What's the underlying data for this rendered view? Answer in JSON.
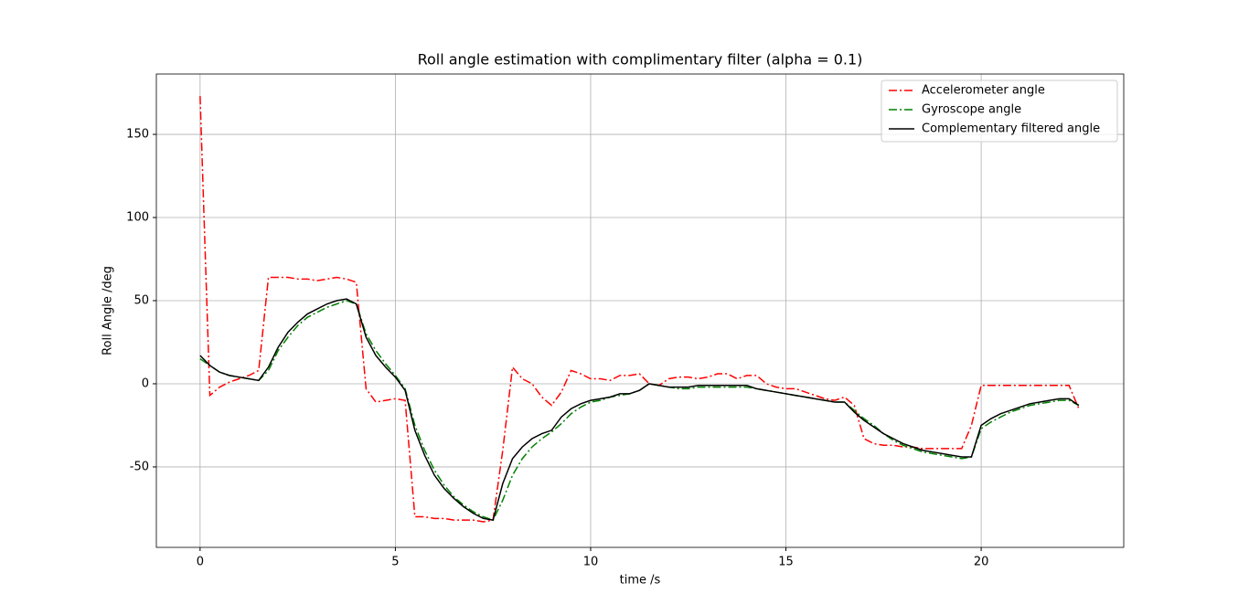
{
  "chart_data": {
    "type": "line",
    "title": "Roll angle estimation with complimentary filter (alpha = 0.1)",
    "x_label": "time /s",
    "y_label": "Roll Angle /deg",
    "x": [
      0,
      0.25,
      0.5,
      0.75,
      1,
      1.25,
      1.5,
      1.75,
      2,
      2.25,
      2.5,
      2.75,
      3,
      3.25,
      3.5,
      3.75,
      4,
      4.25,
      4.5,
      4.75,
      5,
      5.25,
      5.5,
      5.75,
      6,
      6.25,
      6.5,
      6.75,
      7,
      7.25,
      7.5,
      7.75,
      8,
      8.25,
      8.5,
      8.75,
      9,
      9.25,
      9.5,
      9.75,
      10,
      10.25,
      10.5,
      10.75,
      11,
      11.25,
      11.5,
      11.75,
      12,
      12.25,
      12.5,
      12.75,
      13,
      13.25,
      13.5,
      13.75,
      14,
      14.25,
      14.5,
      14.75,
      15,
      15.25,
      15.5,
      15.75,
      16,
      16.25,
      16.5,
      16.75,
      17,
      17.25,
      17.5,
      17.75,
      18,
      18.25,
      18.5,
      18.75,
      19,
      19.25,
      19.5,
      19.75,
      20,
      20.25,
      20.5,
      20.75,
      21,
      21.25,
      21.5,
      21.75,
      22,
      22.25,
      22.5
    ],
    "series": [
      {
        "name": "Accelerometer angle",
        "color": "#ff0000",
        "linestyle": "-.",
        "values": [
          173,
          -7,
          -2,
          1,
          3,
          5,
          8,
          64,
          64,
          64,
          63,
          63,
          62,
          63,
          64,
          63,
          61,
          -3,
          -11,
          -10,
          -9,
          -10,
          -80,
          -80,
          -81,
          -81,
          -82,
          -82,
          -82,
          -83,
          -82,
          -40,
          10,
          3,
          0,
          -8,
          -13,
          -5,
          8,
          6,
          3,
          3,
          2,
          5,
          5,
          6,
          0,
          -1,
          3,
          4,
          4,
          3,
          4,
          6,
          6,
          3,
          5,
          5,
          0,
          -2,
          -3,
          -3,
          -5,
          -7,
          -9,
          -10,
          -8,
          -13,
          -33,
          -36,
          -37,
          -37,
          -38,
          -38,
          -39,
          -39,
          -39,
          -39,
          -39,
          -25,
          -1,
          -1,
          -1,
          -1,
          -1,
          -1,
          -1,
          -1,
          -1,
          -1,
          -15
        ]
      },
      {
        "name": "Gyroscope angle",
        "color": "#008000",
        "linestyle": "-.",
        "values": [
          15,
          11,
          7,
          5,
          4,
          3,
          2,
          8,
          20,
          28,
          35,
          40,
          43,
          46,
          48,
          50,
          48,
          30,
          20,
          12,
          5,
          -3,
          -25,
          -40,
          -52,
          -61,
          -68,
          -73,
          -77,
          -80,
          -82,
          -70,
          -55,
          -45,
          -38,
          -33,
          -29,
          -24,
          -18,
          -14,
          -11,
          -10,
          -8,
          -7,
          -6,
          -4,
          0,
          -1,
          -2,
          -3,
          -3,
          -2,
          -2,
          -2,
          -2,
          -2,
          -2,
          -3,
          -4,
          -5,
          -6,
          -7,
          -8,
          -9,
          -10,
          -11,
          -11,
          -16,
          -21,
          -25,
          -30,
          -34,
          -37,
          -39,
          -41,
          -42,
          -43,
          -44,
          -45,
          -44,
          -27,
          -23,
          -20,
          -17,
          -15,
          -13,
          -12,
          -11,
          -10,
          -10,
          -13
        ]
      },
      {
        "name": "Complementary filtered angle",
        "color": "#000000",
        "linestyle": "-",
        "values": [
          17,
          11,
          7,
          5,
          4,
          3,
          2,
          10,
          22,
          31,
          37,
          42,
          45,
          48,
          50,
          51,
          48,
          28,
          17,
          10,
          4,
          -4,
          -28,
          -43,
          -55,
          -63,
          -69,
          -74,
          -78,
          -81,
          -82,
          -60,
          -45,
          -38,
          -33,
          -30,
          -28,
          -20,
          -15,
          -12,
          -10,
          -9,
          -8,
          -6,
          -6,
          -4,
          0,
          -1,
          -2,
          -2,
          -2,
          -1,
          -1,
          -1,
          -1,
          -1,
          -1,
          -3,
          -4,
          -5,
          -6,
          -7,
          -8,
          -9,
          -10,
          -11,
          -11,
          -17,
          -22,
          -26,
          -30,
          -33,
          -36,
          -38,
          -40,
          -41,
          -42,
          -43,
          -44,
          -44,
          -25,
          -21,
          -18,
          -16,
          -14,
          -12,
          -11,
          -10,
          -9,
          -9,
          -13
        ]
      }
    ],
    "xlim": [
      -1.12,
      23.65
    ],
    "ylim": [
      -98.4,
      186.3
    ],
    "xticks": [
      0,
      5,
      10,
      15,
      20
    ],
    "yticks": [
      -50,
      0,
      50,
      100,
      150
    ],
    "grid": true,
    "legend": "upper right"
  }
}
